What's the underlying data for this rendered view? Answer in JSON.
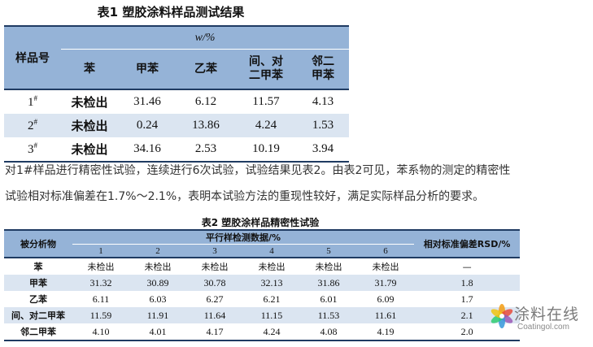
{
  "table1": {
    "title": "表1  塑胶涂料样品测试结果",
    "sample_header": "样品号",
    "unit_header": "w/%",
    "columns": [
      "苯",
      "甲苯",
      "乙苯",
      "间、对\n二甲苯",
      "邻二\n甲苯"
    ],
    "rows": [
      {
        "id": "1",
        "sup": "#",
        "values": [
          "未检出",
          "31.46",
          "6.12",
          "11.57",
          "4.13"
        ]
      },
      {
        "id": "2",
        "sup": "#",
        "values": [
          "未检出",
          "0.24",
          "13.86",
          "4.24",
          "1.53"
        ]
      },
      {
        "id": "3",
        "sup": "#",
        "values": [
          "未检出",
          "34.16",
          "2.53",
          "10.19",
          "3.94"
        ]
      }
    ],
    "colors": {
      "header": "#95b3d7",
      "alt_row": "#dbe5f1",
      "rule": "#1f3b62"
    }
  },
  "paragraph": {
    "line1": "对1#样品进行精密性试验，连续进行6次试验，试验结果见表2。由表2可见，苯系物的测定的精密性",
    "line2": "试验相对标准偏差在1.7%～2.1%，表明本试验方法的重现性较好，满足实际样品分析的要求。"
  },
  "table2": {
    "title": "表2  塑胶涂样品精密性试验",
    "analyte_header": "被分析物",
    "group_header": "平行样检测数据/%",
    "rsd_header": "相对标准偏差RSD/%",
    "run_numbers": [
      "1",
      "2",
      "3",
      "4",
      "5",
      "6"
    ],
    "rows": [
      {
        "name": "苯",
        "values": [
          "未检出",
          "未检出",
          "未检出",
          "未检出",
          "未检出",
          "未检出"
        ],
        "rsd": "—"
      },
      {
        "name": "甲苯",
        "values": [
          "31.32",
          "30.89",
          "30.78",
          "32.13",
          "31.86",
          "31.79"
        ],
        "rsd": "1.8"
      },
      {
        "name": "乙苯",
        "values": [
          "6.11",
          "6.03",
          "6.27",
          "6.21",
          "6.01",
          "6.09"
        ],
        "rsd": "1.7"
      },
      {
        "name": "间、对二甲苯",
        "values": [
          "11.59",
          "11.91",
          "11.64",
          "11.15",
          "11.53",
          "11.61"
        ],
        "rsd": "2.1"
      },
      {
        "name": "邻二甲苯",
        "values": [
          "4.10",
          "4.01",
          "4.17",
          "4.24",
          "4.08",
          "4.19"
        ],
        "rsd": "2.0"
      }
    ]
  },
  "watermark": {
    "icon": "flower-logo-icon",
    "text_cn": "涂料在线",
    "text_en": "Coatingol.com"
  }
}
